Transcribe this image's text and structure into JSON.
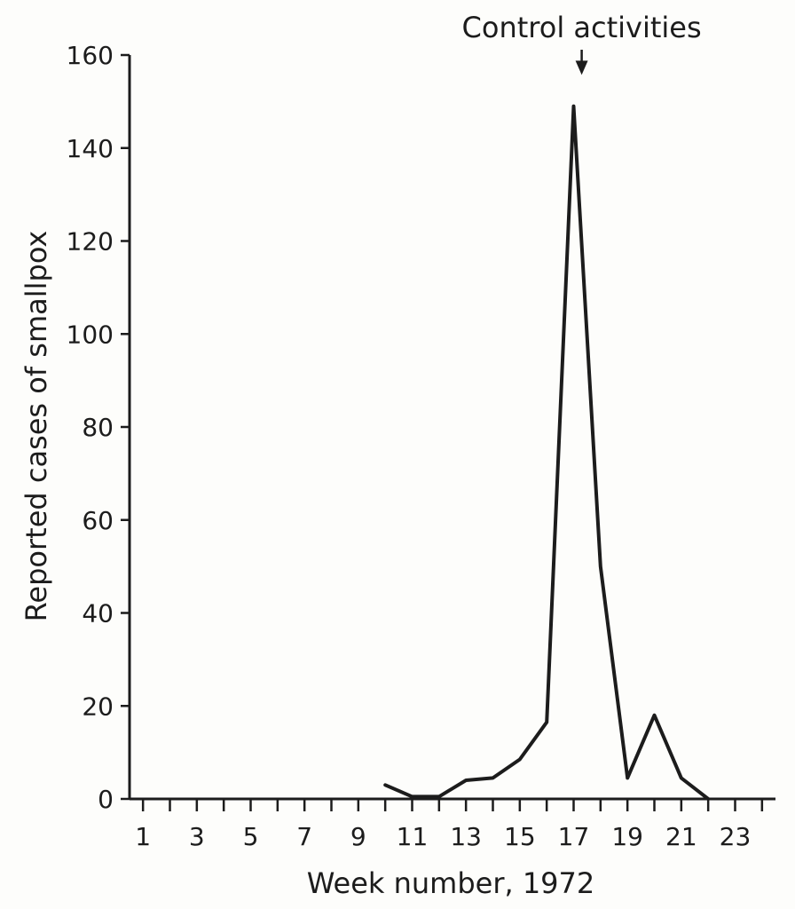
{
  "chart_data": {
    "type": "line",
    "title": "",
    "xlabel": "Week number, 1972",
    "ylabel": "Reported cases of smallpox",
    "xlim": [
      0.5,
      24.5
    ],
    "ylim": [
      0,
      160
    ],
    "x_ticks": [
      1,
      2,
      3,
      4,
      5,
      6,
      7,
      8,
      9,
      10,
      11,
      12,
      13,
      14,
      15,
      16,
      17,
      18,
      19,
      20,
      21,
      22,
      23,
      24
    ],
    "x_tick_labels": [
      "1",
      "3",
      "5",
      "7",
      "9",
      "11",
      "13",
      "15",
      "17",
      "19",
      "21",
      "23"
    ],
    "x_tick_label_values": [
      1,
      3,
      5,
      7,
      9,
      11,
      13,
      15,
      17,
      19,
      21,
      23
    ],
    "y_ticks": [
      0,
      20,
      40,
      60,
      80,
      100,
      120,
      140,
      160
    ],
    "y_tick_labels": [
      "0",
      "20",
      "40",
      "60",
      "80",
      "100",
      "120",
      "140",
      "160"
    ],
    "grid": false,
    "legend": "none",
    "color": "#1c1c1c",
    "series": [
      {
        "x": [
          10,
          11,
          12,
          13,
          14,
          15,
          16,
          17,
          18,
          19,
          20,
          21,
          22
        ],
        "values": [
          3,
          0.5,
          0.5,
          4,
          4.5,
          8.5,
          16.5,
          149,
          50,
          4.5,
          18,
          4.5,
          0
        ]
      }
    ],
    "annotations": [
      {
        "text": "Control activities",
        "x": 17.3,
        "y": 150,
        "arrow": true
      }
    ]
  }
}
